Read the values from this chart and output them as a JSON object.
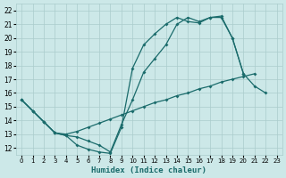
{
  "xlabel": "Humidex (Indice chaleur)",
  "xlim": [
    -0.5,
    23.5
  ],
  "ylim": [
    11.5,
    22.5
  ],
  "xtick_vals": [
    0,
    1,
    2,
    3,
    4,
    5,
    6,
    7,
    8,
    9,
    10,
    11,
    12,
    13,
    14,
    15,
    16,
    17,
    18,
    19,
    20,
    21,
    22,
    23
  ],
  "xtick_labels": [
    "0",
    "1",
    "2",
    "3",
    "4",
    "5",
    "6",
    "7",
    "8",
    "9",
    "10",
    "11",
    "12",
    "13",
    "14",
    "15",
    "16",
    "17",
    "18",
    "19",
    "20",
    "21",
    "22",
    "23"
  ],
  "ytick_vals": [
    12,
    13,
    14,
    15,
    16,
    17,
    18,
    19,
    20,
    21,
    22
  ],
  "bg_color": "#cce8e8",
  "grid_color": "#aacccc",
  "line_color": "#1a6b6b",
  "line1_x": [
    0,
    1,
    2,
    3,
    4,
    5,
    6,
    7,
    8,
    9,
    10,
    11,
    12,
    13,
    14,
    15,
    16,
    17,
    18,
    19,
    20,
    21,
    22
  ],
  "line1_y": [
    15.5,
    14.7,
    13.9,
    13.1,
    12.9,
    12.2,
    11.9,
    11.7,
    11.6,
    13.5,
    17.8,
    19.5,
    20.3,
    21.0,
    21.5,
    21.2,
    21.1,
    21.5,
    21.6,
    20.0,
    17.4,
    16.5,
    16.0
  ],
  "line2_x": [
    0,
    1,
    2,
    3,
    4,
    5,
    6,
    7,
    8,
    9,
    10,
    11,
    12,
    13,
    14,
    15,
    16,
    17,
    18,
    19,
    20,
    21
  ],
  "line2_y": [
    15.5,
    14.7,
    13.9,
    13.1,
    13.0,
    13.2,
    13.5,
    13.8,
    14.1,
    14.4,
    14.7,
    15.0,
    15.3,
    15.5,
    15.8,
    16.0,
    16.3,
    16.5,
    16.8,
    17.0,
    17.2,
    17.4
  ],
  "line3_x": [
    0,
    1,
    2,
    3,
    4,
    5,
    6,
    7,
    8,
    9,
    10,
    11,
    12,
    13,
    14,
    15,
    16,
    17,
    18,
    19,
    20
  ],
  "line3_y": [
    15.5,
    14.7,
    13.9,
    13.1,
    12.9,
    12.8,
    12.5,
    12.2,
    11.7,
    13.7,
    15.5,
    17.5,
    18.5,
    19.5,
    21.0,
    21.5,
    21.2,
    21.5,
    21.5,
    20.0,
    17.4
  ]
}
